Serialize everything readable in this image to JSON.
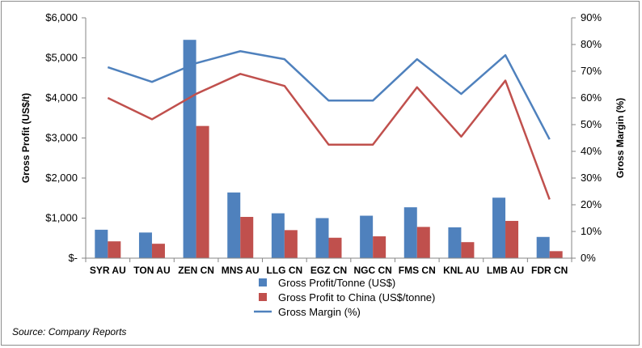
{
  "chart_data": {
    "type": "bar",
    "categories": [
      "SYR AU",
      "TON AU",
      "ZEN CN",
      "MNS AU",
      "LLG CN",
      "EGZ CN",
      "NGC CN",
      "FMS CN",
      "KNL AU",
      "LMB AU",
      "FDR CN"
    ],
    "series": [
      {
        "name": "Gross Profit/Tonne (US$)",
        "type": "bar",
        "axis": "left",
        "color": "#4f81bd",
        "values": [
          710,
          640,
          5450,
          1640,
          1120,
          1000,
          1060,
          1270,
          770,
          1510,
          530
        ]
      },
      {
        "name": "Gross Profit to China (US$/tonne)",
        "type": "bar",
        "axis": "left",
        "color": "#c0504d",
        "values": [
          420,
          360,
          3300,
          1030,
          700,
          510,
          545,
          780,
          400,
          930,
          175
        ]
      },
      {
        "name": "Gross Margin (%)",
        "type": "line",
        "axis": "right",
        "color": "#4f81bd",
        "values": [
          71.5,
          66,
          73,
          77.5,
          74.5,
          59,
          59,
          74.5,
          61.5,
          76,
          44.5
        ]
      },
      {
        "name": "",
        "type": "line",
        "axis": "right",
        "color": "#c0504d",
        "values": [
          60,
          52,
          61.5,
          69,
          64.5,
          42.5,
          42.5,
          64,
          45.5,
          66.5,
          22
        ]
      }
    ],
    "ylabel": "Gross Profit (US$/t)",
    "y2label": "Gross Margin (%)",
    "ylim": [
      0,
      6000
    ],
    "y2lim": [
      0,
      90
    ],
    "y_ticks": [
      "$-",
      "$1,000",
      "$2,000",
      "$3,000",
      "$4,000",
      "$5,000",
      "$6,000"
    ],
    "y2_ticks": [
      "0%",
      "10%",
      "20%",
      "30%",
      "40%",
      "50%",
      "60%",
      "70%",
      "80%",
      "90%"
    ],
    "grid": false,
    "legend": "bottom-center"
  },
  "source": "Source: Company Reports"
}
